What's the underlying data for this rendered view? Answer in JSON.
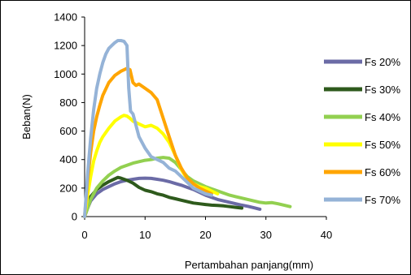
{
  "chart_data": {
    "type": "line",
    "title": "",
    "xlabel": "Pertambahan panjang(mm)",
    "ylabel": "Beban(N)",
    "xlim": [
      0,
      40
    ],
    "ylim": [
      0,
      1400
    ],
    "x_ticks": [
      0,
      10,
      20,
      30,
      40
    ],
    "y_ticks": [
      0,
      200,
      400,
      600,
      800,
      1000,
      1200,
      1400
    ],
    "grid": false,
    "legend_position": "right",
    "series": [
      {
        "name": "Fs 20%",
        "color": "#6b6ba6",
        "x": [
          0,
          0.5,
          1,
          2,
          3,
          4,
          5,
          6,
          7,
          8,
          9,
          10,
          11,
          12,
          13,
          14,
          15,
          16,
          17,
          18,
          19,
          20,
          21,
          22,
          23,
          24,
          25,
          26,
          27,
          28,
          29
        ],
        "y": [
          0,
          60,
          110,
          160,
          190,
          210,
          230,
          245,
          255,
          262,
          268,
          270,
          268,
          262,
          255,
          245,
          232,
          220,
          205,
          190,
          170,
          150,
          135,
          120,
          110,
          100,
          90,
          80,
          72,
          62,
          52
        ]
      },
      {
        "name": "Fs 30%",
        "color": "#2e5a1c",
        "x": [
          0,
          0.5,
          1,
          2,
          3,
          4,
          5,
          5.5,
          6,
          7,
          8,
          9,
          10,
          11,
          12,
          13,
          14,
          15,
          16,
          17,
          18,
          19,
          20,
          21,
          22,
          23,
          24,
          25,
          26
        ],
        "y": [
          0,
          80,
          140,
          190,
          220,
          245,
          265,
          275,
          270,
          255,
          235,
          205,
          185,
          175,
          160,
          150,
          135,
          125,
          115,
          105,
          95,
          90,
          85,
          80,
          78,
          75,
          70,
          65,
          60
        ]
      },
      {
        "name": "Fs 40%",
        "color": "#92d050",
        "x": [
          0,
          1,
          2,
          3,
          4,
          5,
          6,
          7,
          8,
          9,
          10,
          11,
          12,
          13,
          14,
          15,
          16,
          17,
          18,
          19,
          20,
          21,
          22,
          23,
          24,
          25,
          26,
          27,
          28,
          29,
          30,
          31,
          32,
          33,
          34
        ],
        "y": [
          0,
          120,
          200,
          250,
          290,
          320,
          345,
          360,
          375,
          385,
          395,
          400,
          410,
          415,
          410,
          380,
          330,
          280,
          250,
          230,
          210,
          195,
          180,
          165,
          150,
          140,
          130,
          120,
          110,
          100,
          95,
          98,
          90,
          80,
          70
        ]
      },
      {
        "name": "Fs 50%",
        "color": "#ffff00",
        "x": [
          0,
          0.5,
          1,
          1.5,
          2,
          2.5,
          3,
          4,
          5,
          6,
          6.5,
          7,
          7.5,
          8,
          9,
          10,
          11,
          12,
          13,
          14,
          15,
          16,
          17,
          18,
          19,
          20,
          21,
          22
        ],
        "y": [
          0,
          150,
          280,
          390,
          460,
          520,
          560,
          620,
          670,
          700,
          710,
          705,
          690,
          670,
          650,
          630,
          640,
          620,
          580,
          520,
          430,
          330,
          260,
          230,
          210,
          200,
          180,
          160
        ]
      },
      {
        "name": "Fs 60%",
        "color": "#ffa500",
        "x": [
          0,
          0.5,
          1,
          1.5,
          2,
          2.5,
          3,
          4,
          5,
          6,
          7,
          7.5,
          8,
          8.5,
          9,
          10,
          11,
          12,
          13,
          14,
          15,
          16,
          17,
          18,
          19,
          20,
          21
        ],
        "y": [
          0,
          250,
          450,
          600,
          700,
          780,
          850,
          940,
          990,
          1020,
          1040,
          1030,
          940,
          920,
          930,
          900,
          870,
          820,
          690,
          560,
          430,
          340,
          270,
          230,
          200,
          180,
          160
        ]
      },
      {
        "name": "Fs 70%",
        "color": "#95b3d7",
        "x": [
          0,
          0.5,
          1,
          1.5,
          2,
          2.5,
          3,
          3.5,
          4,
          4.5,
          5,
          5.5,
          6,
          6.5,
          7,
          7.3,
          7.6,
          8,
          9,
          10,
          11,
          12,
          13,
          14,
          15,
          16,
          17,
          18,
          19,
          20,
          21
        ],
        "y": [
          0,
          300,
          550,
          750,
          900,
          1000,
          1080,
          1140,
          1180,
          1200,
          1220,
          1235,
          1235,
          1230,
          1200,
          900,
          740,
          720,
          560,
          480,
          420,
          400,
          380,
          340,
          320,
          280,
          240,
          200,
          180,
          160,
          150
        ]
      }
    ]
  }
}
